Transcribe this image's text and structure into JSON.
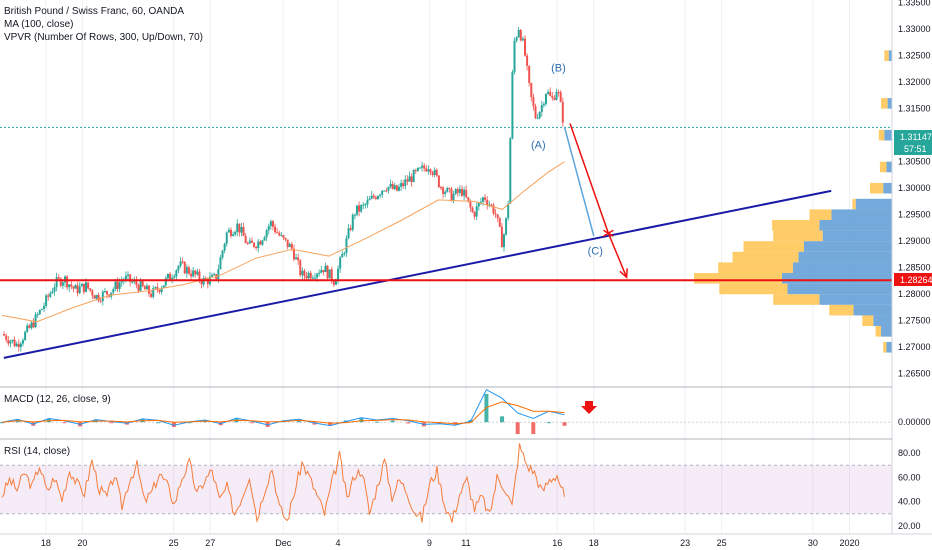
{
  "legend": {
    "symbol": "British Pound / Swiss Franc, 60, OANDA",
    "ma": "MA (100, close)",
    "vpvr": "VPVR (Number Of Rows, 300, Up/Down, 70)",
    "macd": "MACD (12, 26, close, 9)",
    "rsi": "RSI (14, close)"
  },
  "badges": {
    "last_price": "1.31147",
    "countdown": "57:51",
    "level_price": "1.28264"
  },
  "waves": {
    "a": "(A)",
    "b": "(B)",
    "c": "(C)"
  },
  "colors": {
    "up": "#26a69a",
    "down": "#ef5350",
    "ma": "#f7a35c",
    "trendline": "#1a1aa8",
    "support": "#ee1111",
    "projection": "#5aa5dd",
    "rsi": "#f57c3a",
    "vpvr_up": "#5b9bd5",
    "vpvr_down": "#ffc34d"
  },
  "chart_data": [
    {
      "type": "candlestick",
      "symbol": "British Pound / Swiss Franc",
      "ylim": [
        1.2625,
        1.3355
      ],
      "y_ticks": [
        "1.33500",
        "1.33000",
        "1.32500",
        "1.32000",
        "1.31500",
        "1.31000",
        "1.30500",
        "1.30000",
        "1.29500",
        "1.29000",
        "1.28500",
        "1.28000",
        "1.27500",
        "1.27000",
        "1.26500"
      ],
      "y_tick_values": [
        1.335,
        1.33,
        1.325,
        1.32,
        1.315,
        1.31,
        1.305,
        1.3,
        1.295,
        1.29,
        1.285,
        1.28,
        1.275,
        1.27,
        1.265
      ],
      "x_ticks": [
        "18",
        "20",
        "25",
        "27",
        "Dec",
        "4",
        "9",
        "11",
        "16",
        "18",
        "23",
        "25",
        "30",
        "2020"
      ],
      "x_tick_days": [
        18,
        20,
        25,
        27,
        31,
        34,
        39,
        41,
        46,
        48,
        53,
        55,
        60,
        62
      ],
      "x_range_days": [
        15.6,
        64
      ],
      "last_day": 46.4,
      "close_series": [
        {
          "day": 15.6,
          "close": 1.2725
        },
        {
          "day": 16.4,
          "close": 1.2705
        },
        {
          "day": 17.2,
          "close": 1.274
        },
        {
          "day": 17.9,
          "close": 1.278
        },
        {
          "day": 18.5,
          "close": 1.282
        },
        {
          "day": 19.0,
          "close": 1.283
        },
        {
          "day": 19.6,
          "close": 1.2808
        },
        {
          "day": 20.2,
          "close": 1.2815
        },
        {
          "day": 20.8,
          "close": 1.2795
        },
        {
          "day": 21.5,
          "close": 1.2805
        },
        {
          "day": 22.3,
          "close": 1.283
        },
        {
          "day": 23.0,
          "close": 1.2818
        },
        {
          "day": 23.8,
          "close": 1.28
        },
        {
          "day": 24.5,
          "close": 1.2822
        },
        {
          "day": 25.3,
          "close": 1.2855
        },
        {
          "day": 26.0,
          "close": 1.284
        },
        {
          "day": 26.6,
          "close": 1.2825
        },
        {
          "day": 27.3,
          "close": 1.283
        },
        {
          "day": 27.9,
          "close": 1.2915
        },
        {
          "day": 28.5,
          "close": 1.293
        },
        {
          "day": 29.1,
          "close": 1.289
        },
        {
          "day": 29.7,
          "close": 1.29
        },
        {
          "day": 30.3,
          "close": 1.2935
        },
        {
          "day": 30.9,
          "close": 1.2905
        },
        {
          "day": 31.5,
          "close": 1.2885
        },
        {
          "day": 32.0,
          "close": 1.2835
        },
        {
          "day": 32.6,
          "close": 1.284
        },
        {
          "day": 33.2,
          "close": 1.285
        },
        {
          "day": 33.8,
          "close": 1.2825
        },
        {
          "day": 34.3,
          "close": 1.288
        },
        {
          "day": 34.9,
          "close": 1.2955
        },
        {
          "day": 35.4,
          "close": 1.2965
        },
        {
          "day": 36.0,
          "close": 1.2985
        },
        {
          "day": 36.6,
          "close": 1.3005
        },
        {
          "day": 37.2,
          "close": 1.2995
        },
        {
          "day": 37.8,
          "close": 1.3015
        },
        {
          "day": 38.4,
          "close": 1.303
        },
        {
          "day": 39.0,
          "close": 1.3045
        },
        {
          "day": 39.6,
          "close": 1.3005
        },
        {
          "day": 40.2,
          "close": 1.2985
        },
        {
          "day": 40.8,
          "close": 1.2995
        },
        {
          "day": 41.4,
          "close": 1.295
        },
        {
          "day": 42.0,
          "close": 1.2985
        },
        {
          "day": 42.6,
          "close": 1.2955
        },
        {
          "day": 43.0,
          "close": 1.2895
        },
        {
          "day": 43.3,
          "close": 1.296
        },
        {
          "day": 43.6,
          "close": 1.327
        },
        {
          "day": 43.9,
          "close": 1.3305
        },
        {
          "day": 44.2,
          "close": 1.326
        },
        {
          "day": 44.5,
          "close": 1.318
        },
        {
          "day": 44.8,
          "close": 1.3135
        },
        {
          "day": 45.1,
          "close": 1.315
        },
        {
          "day": 45.4,
          "close": 1.3185
        },
        {
          "day": 45.7,
          "close": 1.3165
        },
        {
          "day": 46.0,
          "close": 1.319
        },
        {
          "day": 46.4,
          "close": 1.31147
        }
      ],
      "ma_100": [
        {
          "day": 15.6,
          "value": 1.276
        },
        {
          "day": 17.5,
          "value": 1.2748
        },
        {
          "day": 19.5,
          "value": 1.2775
        },
        {
          "day": 21.5,
          "value": 1.2798
        },
        {
          "day": 23.5,
          "value": 1.2806
        },
        {
          "day": 25.5,
          "value": 1.2818
        },
        {
          "day": 27.5,
          "value": 1.2835
        },
        {
          "day": 29.5,
          "value": 1.2868
        },
        {
          "day": 31.5,
          "value": 1.2885
        },
        {
          "day": 33.5,
          "value": 1.2872
        },
        {
          "day": 35.5,
          "value": 1.2905
        },
        {
          "day": 37.5,
          "value": 1.294
        },
        {
          "day": 39.5,
          "value": 1.2978
        },
        {
          "day": 41.5,
          "value": 1.2975
        },
        {
          "day": 43.0,
          "value": 1.296
        },
        {
          "day": 44.2,
          "value": 1.2995
        },
        {
          "day": 45.5,
          "value": 1.303
        },
        {
          "day": 46.4,
          "value": 1.305
        }
      ],
      "annotations": {
        "trendline": [
          {
            "day": 15.7,
            "value": 1.268
          },
          {
            "day": 61.0,
            "value": 1.2995
          }
        ],
        "support_level": 1.28264,
        "last_price": 1.31147,
        "projection_blue": [
          {
            "day": 46.4,
            "value": 1.3115
          },
          {
            "day": 48.0,
            "value": 1.291
          }
        ],
        "projection_red": [
          {
            "day": 46.7,
            "value": 1.3122
          },
          {
            "day": 48.8,
            "value": 1.2915
          },
          {
            "day": 49.8,
            "value": 1.2832
          }
        ],
        "wave_labels": [
          {
            "label": "(A)",
            "day": 45.0,
            "value": 1.3075
          },
          {
            "label": "(B)",
            "day": 46.1,
            "value": 1.322
          },
          {
            "label": "(C)",
            "day": 48.1,
            "value": 1.2875
          }
        ]
      },
      "vpvr_profile": [
        {
          "price": 1.297,
          "up": 0.33,
          "down": 0.03
        },
        {
          "price": 1.295,
          "up": 0.55,
          "down": 0.2
        },
        {
          "price": 1.293,
          "up": 0.66,
          "down": 0.43
        },
        {
          "price": 1.291,
          "up": 0.63,
          "down": 0.45
        },
        {
          "price": 1.289,
          "up": 0.8,
          "down": 0.55
        },
        {
          "price": 1.287,
          "up": 0.85,
          "down": 0.6
        },
        {
          "price": 1.285,
          "up": 0.9,
          "down": 0.68
        },
        {
          "price": 1.283,
          "up": 1.0,
          "down": 0.8
        },
        {
          "price": 1.281,
          "up": 0.95,
          "down": 0.62
        },
        {
          "price": 1.279,
          "up": 0.66,
          "down": 0.42
        },
        {
          "price": 1.277,
          "up": 0.35,
          "down": 0.22
        },
        {
          "price": 1.275,
          "up": 0.17,
          "down": 0.1
        },
        {
          "price": 1.273,
          "up": 0.1,
          "down": 0.05
        },
        {
          "price": 1.3,
          "up": 0.08,
          "down": 0.12
        },
        {
          "price": 1.304,
          "up": 0.05,
          "down": 0.06
        },
        {
          "price": 1.31,
          "up": 0.07,
          "down": 0.05
        },
        {
          "price": 1.316,
          "up": 0.04,
          "down": 0.06
        },
        {
          "price": 1.325,
          "up": 0.03,
          "down": 0.04
        },
        {
          "price": 1.27,
          "up": 0.05,
          "down": 0.03
        }
      ]
    },
    {
      "type": "line",
      "indicator": "MACD (12, 26, close, 9)",
      "y_ticks": [
        "0.00000"
      ],
      "ylim": [
        -0.004,
        0.009
      ],
      "macd": [
        0,
        0.0008,
        -0.0005,
        0.001,
        0.0004,
        -0.0006,
        0.0007,
        0.0002,
        -0.0003,
        0.0009,
        0.0005,
        -0.0008,
        0.0001,
        0.0006,
        -0.0004,
        0.0011,
        0.0003,
        -0.0007,
        0.0004,
        0.0008,
        -0.0002,
        -0.0009,
        0.0002,
        0.0012,
        0.0006,
        0.001,
        0.0004,
        -0.0006,
        -0.0004,
        -0.0008,
        0.0003,
        0.0088,
        0.0065,
        0.0025,
        0.001,
        0.003,
        0.002
      ],
      "signal": [
        0,
        0.0004,
        0.0001,
        0.0004,
        0.0005,
        0.0001,
        0.0003,
        0.0003,
        0.0001,
        0.0004,
        0.0005,
        0.0,
        0.0001,
        0.0003,
        0.0001,
        0.0005,
        0.0004,
        0.0001,
        0.0002,
        0.0005,
        0.0002,
        -0.0003,
        -0.0001,
        0.0004,
        0.0005,
        0.0007,
        0.0006,
        0.0001,
        -0.0001,
        -0.0004,
        -0.0001,
        0.004,
        0.0055,
        0.0045,
        0.003,
        0.003,
        0.0026
      ]
    },
    {
      "type": "line",
      "indicator": "RSI (14, close)",
      "ylim": [
        15,
        90
      ],
      "y_ticks": [
        "80.00",
        "60.00",
        "40.00",
        "20.00"
      ],
      "y_tick_values": [
        80,
        60,
        40,
        20
      ],
      "band": [
        30,
        70
      ],
      "values": [
        45,
        58,
        50,
        64,
        52,
        70,
        48,
        60,
        42,
        66,
        55,
        47,
        74,
        50,
        44,
        62,
        36,
        58,
        70,
        40,
        48,
        63,
        54,
        38,
        60,
        72,
        46,
        57,
        66,
        41,
        52,
        30,
        44,
        62,
        26,
        50,
        68,
        35,
        24,
        48,
        72,
        60,
        45,
        30,
        56,
        78,
        42,
        62,
        66,
        30,
        52,
        74,
        44,
        58,
        48,
        32,
        26,
        54,
        66,
        38,
        24,
        46,
        58,
        34,
        44,
        28,
        60,
        52,
        36,
        86,
        70,
        64,
        48,
        58,
        62,
        44
      ]
    }
  ]
}
